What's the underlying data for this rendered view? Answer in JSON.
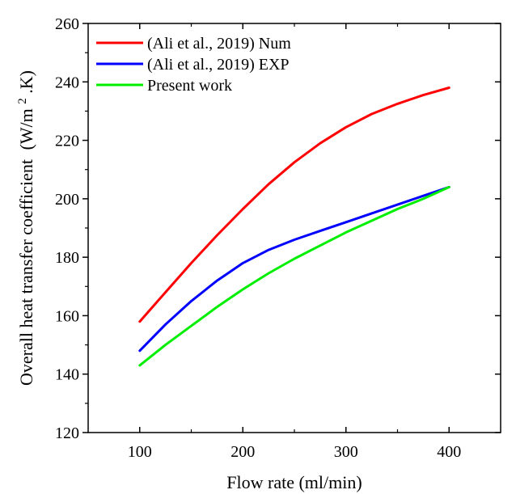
{
  "chart_data": {
    "type": "line",
    "xlabel": "Flow rate (ml/min)",
    "ylabel": "Overall heat transfer coefficient",
    "ylabel_unit_prefix": "(W/m",
    "ylabel_unit_sup": "2",
    "ylabel_unit_suffix": ".K)",
    "xlim": [
      50,
      450
    ],
    "ylim": [
      120,
      260
    ],
    "xticks": [
      100,
      200,
      300,
      400
    ],
    "yticks": [
      120,
      140,
      160,
      180,
      200,
      220,
      240,
      260
    ],
    "grid": false,
    "legend_position": "top-left",
    "series": [
      {
        "name": "(Ali et al., 2019) Num",
        "color": "#ff0000",
        "x": [
          100,
          125,
          150,
          175,
          200,
          225,
          250,
          275,
          300,
          325,
          350,
          375,
          400
        ],
        "y": [
          158,
          168,
          178,
          187.5,
          196.5,
          205,
          212.5,
          219,
          224.5,
          229,
          232.5,
          235.5,
          238
        ]
      },
      {
        "name": "(Ali et al., 2019) EXP",
        "color": "#0000ff",
        "x": [
          100,
          125,
          150,
          175,
          200,
          225,
          250,
          275,
          300,
          325,
          350,
          375,
          400
        ],
        "y": [
          148,
          157,
          165,
          172,
          178,
          182.5,
          186,
          189,
          192,
          195,
          198,
          201,
          204
        ]
      },
      {
        "name": "Present work",
        "color": "#00ee00",
        "x": [
          100,
          125,
          150,
          175,
          200,
          225,
          250,
          275,
          300,
          325,
          350,
          375,
          400
        ],
        "y": [
          143,
          150,
          156.5,
          163,
          169,
          174.5,
          179.5,
          184,
          188.5,
          192.5,
          196.5,
          200,
          204
        ]
      }
    ]
  }
}
